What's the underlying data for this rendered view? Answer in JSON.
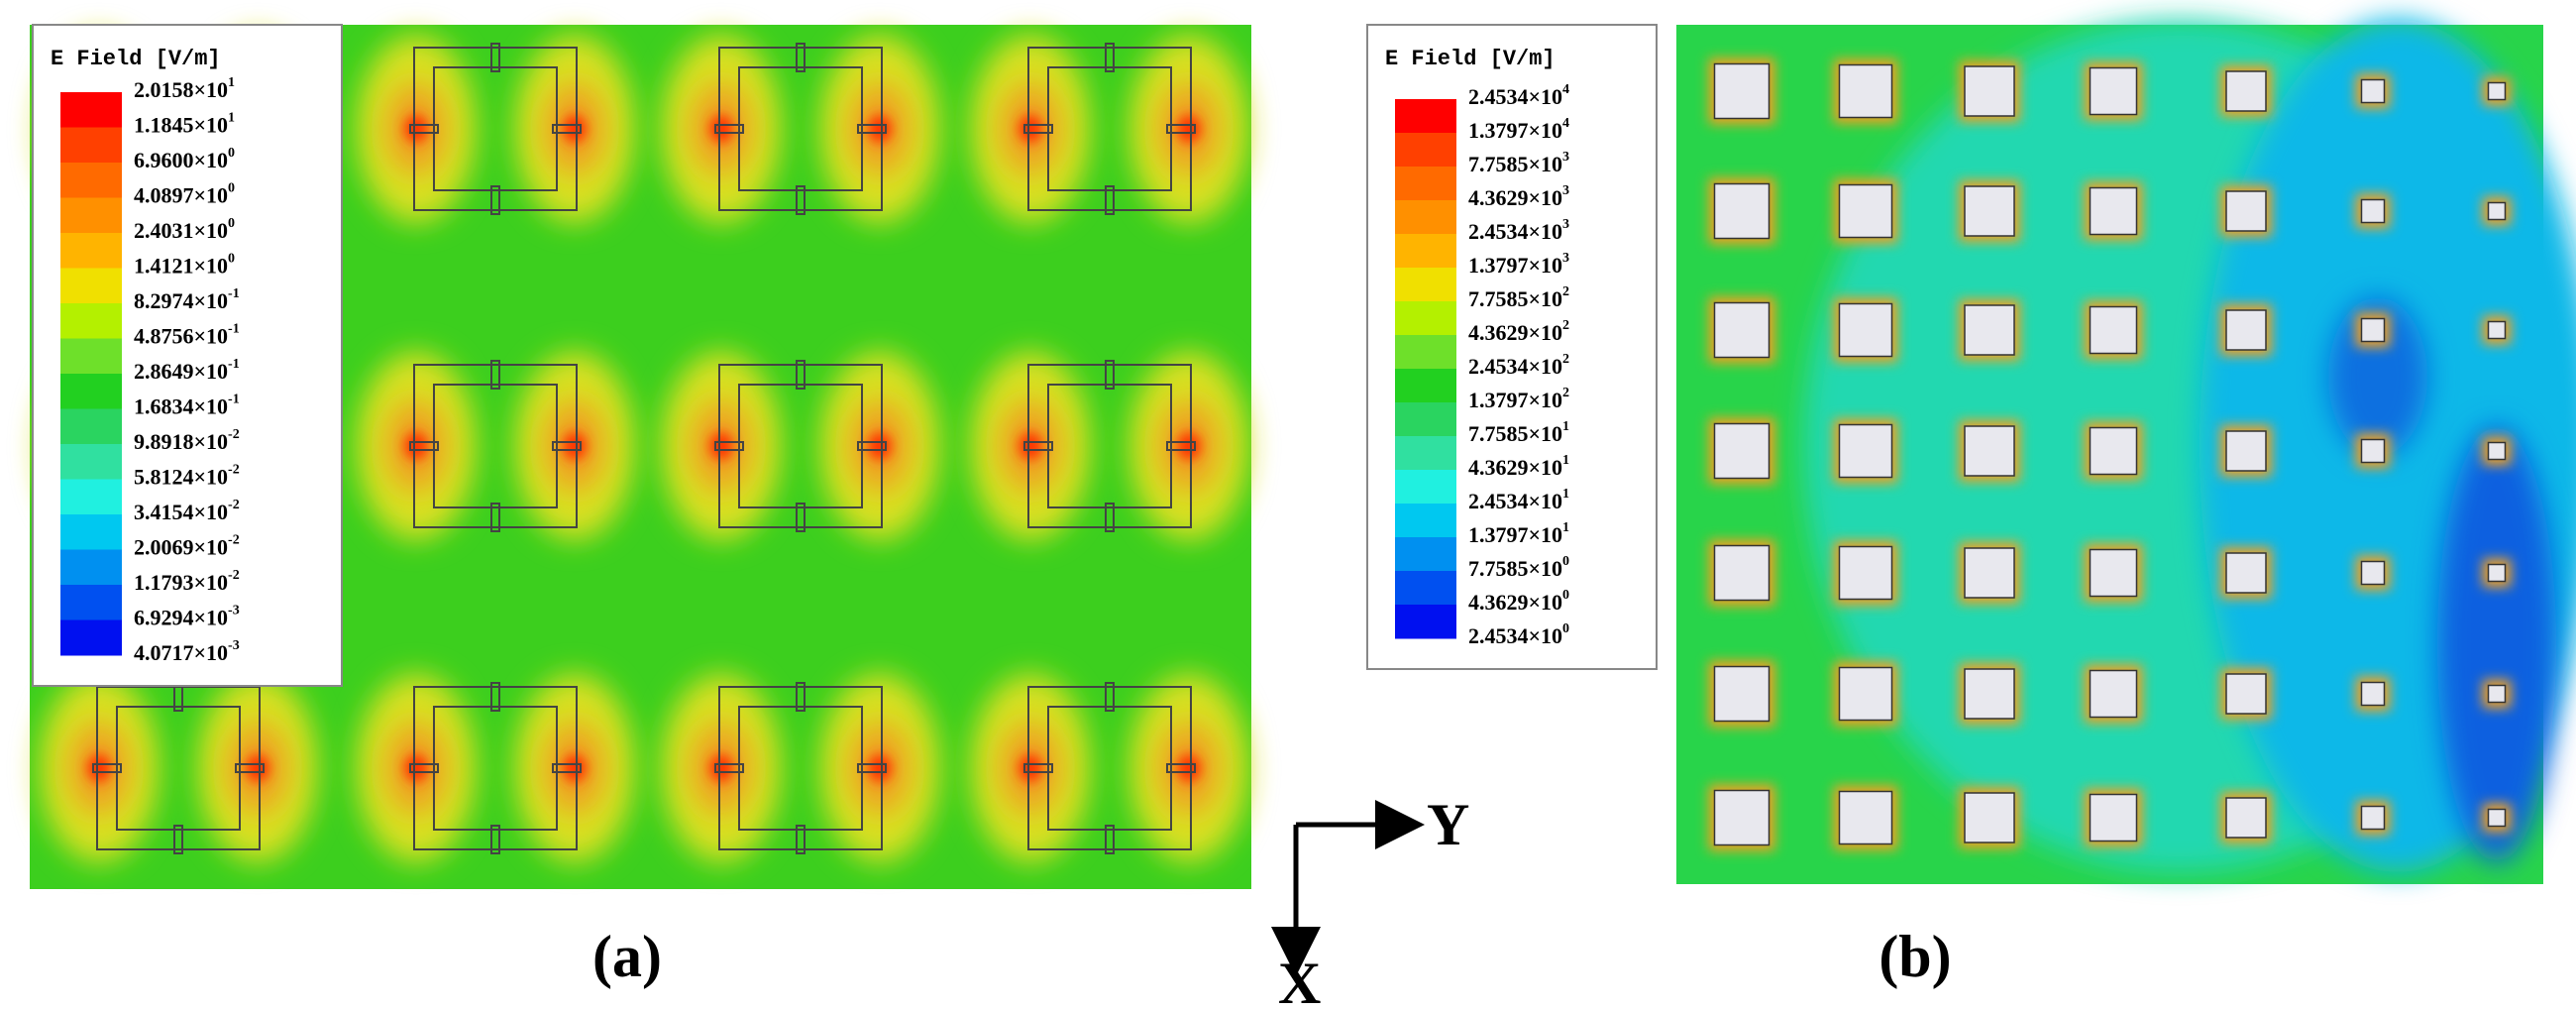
{
  "panels": [
    {
      "label": "(a)",
      "legend": {
        "title": "E Field  [V/m]",
        "labels": [
          {
            "base": "2.0158×10",
            "exp": "1"
          },
          {
            "base": "1.1845×10",
            "exp": "1"
          },
          {
            "base": "6.9600×10",
            "exp": "0"
          },
          {
            "base": "4.0897×10",
            "exp": "0"
          },
          {
            "base": "2.4031×10",
            "exp": "0"
          },
          {
            "base": "1.4121×10",
            "exp": "0"
          },
          {
            "base": "8.2974×10",
            "exp": "-1"
          },
          {
            "base": "4.8756×10",
            "exp": "-1"
          },
          {
            "base": "2.8649×10",
            "exp": "-1"
          },
          {
            "base": "1.6834×10",
            "exp": "-1"
          },
          {
            "base": "9.8918×10",
            "exp": "-2"
          },
          {
            "base": "5.8124×10",
            "exp": "-2"
          },
          {
            "base": "3.4154×10",
            "exp": "-2"
          },
          {
            "base": "2.0069×10",
            "exp": "-2"
          },
          {
            "base": "1.1793×10",
            "exp": "-2"
          },
          {
            "base": "6.9294×10",
            "exp": "-3"
          },
          {
            "base": "4.0717×10",
            "exp": "-3"
          }
        ]
      }
    },
    {
      "label": "(b)",
      "legend": {
        "title": "E Field  [V/m]",
        "labels": [
          {
            "base": "2.4534×10",
            "exp": "4"
          },
          {
            "base": "1.3797×10",
            "exp": "4"
          },
          {
            "base": "7.7585×10",
            "exp": "3"
          },
          {
            "base": "4.3629×10",
            "exp": "3"
          },
          {
            "base": "2.4534×10",
            "exp": "3"
          },
          {
            "base": "1.3797×10",
            "exp": "3"
          },
          {
            "base": "7.7585×10",
            "exp": "2"
          },
          {
            "base": "4.3629×10",
            "exp": "2"
          },
          {
            "base": "2.4534×10",
            "exp": "2"
          },
          {
            "base": "1.3797×10",
            "exp": "2"
          },
          {
            "base": "7.7585×10",
            "exp": "1"
          },
          {
            "base": "4.3629×10",
            "exp": "1"
          },
          {
            "base": "2.4534×10",
            "exp": "1"
          },
          {
            "base": "1.3797×10",
            "exp": "1"
          },
          {
            "base": "7.7585×10",
            "exp": "0"
          },
          {
            "base": "4.3629×10",
            "exp": "0"
          },
          {
            "base": "2.4534×10",
            "exp": "0"
          }
        ]
      }
    }
  ],
  "axes": {
    "horizontal": "Y",
    "vertical": "X"
  }
}
